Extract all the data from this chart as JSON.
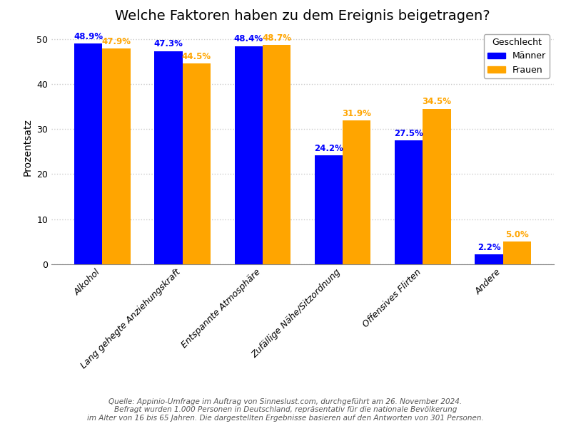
{
  "title": "Welche Faktoren haben zu dem Ereignis beigetragen?",
  "categories": [
    "Alkohol",
    "Lang gehegte Anziehungskraft",
    "Entspannte Atmosphäre",
    "Zufällige Nähe/Sitzordnung",
    "Offensives Flirten",
    "Andere"
  ],
  "maenner": [
    48.9,
    47.3,
    48.4,
    24.2,
    27.5,
    2.2
  ],
  "frauen": [
    47.9,
    44.5,
    48.7,
    31.9,
    34.5,
    5.0
  ],
  "maenner_color": "#0000FF",
  "frauen_color": "#FFA500",
  "ylabel": "Prozentsatz",
  "ylim": [
    0,
    52
  ],
  "yticks": [
    0,
    10,
    20,
    30,
    40,
    50
  ],
  "legend_title": "Geschlecht",
  "legend_maenner": "Männer",
  "legend_frauen": "Frauen",
  "footnote_line1": "Quelle: Appinio-Umfrage im Auftrag von Sinneslust.com, durchgeführt am 26. November 2024.",
  "footnote_line2": "Befragt wurden 1.000 Personen in Deutschland, repräsentativ für die nationale Bevölkerung",
  "footnote_line3": "im Alter von 16 bis 65 Jahren. Die dargestellten Ergebnisse basieren auf den Antworten von 301 Personen.",
  "bar_width": 0.35,
  "label_fontsize": 8.5,
  "title_fontsize": 14,
  "ylabel_fontsize": 10,
  "tick_fontsize": 9,
  "xtick_fontsize": 9,
  "footnote_fontsize": 7.5,
  "background_color": "#FFFFFF",
  "grid_color": "#CCCCCC"
}
